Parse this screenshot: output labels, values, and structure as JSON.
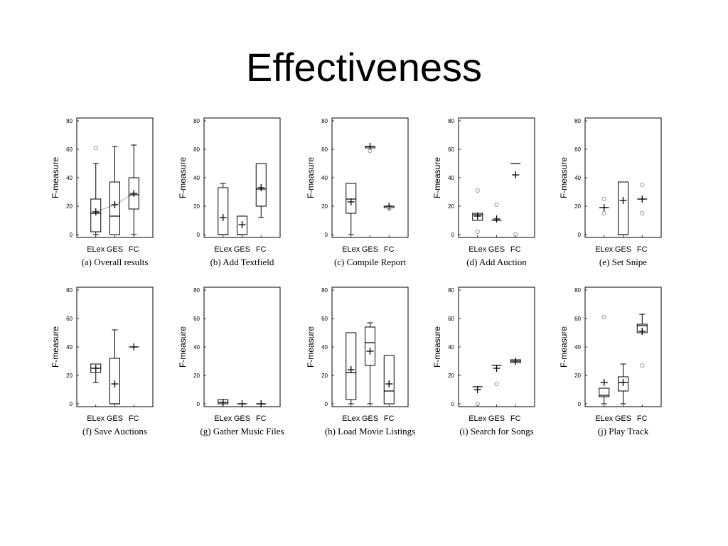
{
  "slide": {
    "title": "Effectiveness"
  },
  "chart_data": [
    {
      "type": "box",
      "caption": "(a) Overall results",
      "ylabel": "F-measure",
      "ylim": [
        0,
        80
      ],
      "yticks": [
        0,
        20,
        40,
        60,
        80
      ],
      "categories": [
        "ELex",
        "GES",
        "FC"
      ],
      "boxes": [
        {
          "whisker_low": 0,
          "q1": 2,
          "median": 15,
          "q3": 25,
          "whisker_high": 50,
          "mean": 16,
          "outliers": [
            61
          ]
        },
        {
          "whisker_low": 0,
          "q1": 0,
          "median": 13,
          "q3": 37,
          "whisker_high": 62,
          "mean": 21,
          "outliers": []
        },
        {
          "whisker_low": 0,
          "q1": 18,
          "median": 28,
          "q3": 40,
          "whisker_high": 63,
          "mean": 29,
          "outliers": []
        }
      ],
      "trend_line": true
    },
    {
      "type": "box",
      "caption": "(b) Add Textfield",
      "ylabel": "F-measure",
      "ylim": [
        0,
        80
      ],
      "yticks": [
        0,
        20,
        40,
        60,
        80
      ],
      "categories": [
        "ELex",
        "GES",
        "FC"
      ],
      "boxes": [
        {
          "whisker_low": 0,
          "q1": 0,
          "median": 0,
          "q3": 33,
          "whisker_high": 36,
          "mean": 12,
          "outliers": []
        },
        {
          "whisker_low": 0,
          "q1": 0,
          "median": 0,
          "q3": 13,
          "whisker_high": 13,
          "mean": 7,
          "outliers": []
        },
        {
          "whisker_low": 12,
          "q1": 20,
          "median": 32,
          "q3": 50,
          "whisker_high": 50,
          "mean": 33,
          "outliers": []
        }
      ]
    },
    {
      "type": "box",
      "caption": "(c) Compile Report",
      "ylabel": "F-measure",
      "ylim": [
        0,
        80
      ],
      "yticks": [
        0,
        20,
        40,
        60,
        80
      ],
      "categories": [
        "ELex",
        "GES",
        "FC"
      ],
      "boxes": [
        {
          "whisker_low": 0,
          "q1": 15,
          "median": 25,
          "q3": 36,
          "whisker_high": 36,
          "mean": 23,
          "outliers": []
        },
        {
          "whisker_low": 61,
          "q1": 61,
          "median": 62,
          "q3": 62,
          "whisker_high": 62,
          "mean": 62,
          "outliers": [
            59
          ]
        },
        {
          "whisker_low": 19,
          "q1": 19,
          "median": 20,
          "q3": 20,
          "whisker_high": 20,
          "mean": 20,
          "outliers": [
            18
          ]
        }
      ]
    },
    {
      "type": "box",
      "caption": "(d) Add Auction",
      "ylabel": "F-measure",
      "ylim": [
        0,
        80
      ],
      "yticks": [
        0,
        20,
        40,
        60,
        80
      ],
      "categories": [
        "ELex",
        "GES",
        "FC"
      ],
      "boxes": [
        {
          "whisker_low": 10,
          "q1": 10,
          "median": 14,
          "q3": 15,
          "whisker_high": 15,
          "mean": 13,
          "outliers": [
            31,
            2
          ]
        },
        {
          "whisker_low": 10,
          "q1": 10,
          "median": 10,
          "q3": 10,
          "whisker_high": 10,
          "mean": 11,
          "outliers": [
            21
          ]
        },
        {
          "whisker_low": 50,
          "q1": 50,
          "median": 50,
          "q3": 50,
          "whisker_high": 50,
          "mean": 42,
          "outliers": [
            0
          ]
        }
      ]
    },
    {
      "type": "box",
      "caption": "(e) Set Snipe",
      "ylabel": "F-measure",
      "ylim": [
        0,
        80
      ],
      "yticks": [
        0,
        20,
        40,
        60,
        80
      ],
      "categories": [
        "ELex",
        "GES",
        "FC"
      ],
      "boxes": [
        {
          "whisker_low": 19,
          "q1": 19,
          "median": 19,
          "q3": 19,
          "whisker_high": 19,
          "mean": 19,
          "outliers": [
            25,
            15
          ]
        },
        {
          "whisker_low": 0,
          "q1": 0,
          "median": 0,
          "q3": 37,
          "whisker_high": 37,
          "mean": 24,
          "outliers": []
        },
        {
          "whisker_low": 25,
          "q1": 25,
          "median": 25,
          "q3": 25,
          "whisker_high": 25,
          "mean": 25,
          "outliers": [
            35,
            15
          ]
        }
      ]
    },
    {
      "type": "box",
      "caption": "(f) Save Auctions",
      "ylabel": "F-measure",
      "ylim": [
        0,
        80
      ],
      "yticks": [
        0,
        20,
        40,
        60,
        80
      ],
      "categories": [
        "ELex",
        "GES",
        "FC"
      ],
      "boxes": [
        {
          "whisker_low": 15,
          "q1": 22,
          "median": 25,
          "q3": 28,
          "whisker_high": 28,
          "mean": 25,
          "outliers": []
        },
        {
          "whisker_low": 0,
          "q1": 0,
          "median": 0,
          "q3": 32,
          "whisker_high": 52,
          "mean": 14,
          "outliers": []
        },
        {
          "whisker_low": 40,
          "q1": 40,
          "median": 40,
          "q3": 40,
          "whisker_high": 40,
          "mean": 40,
          "outliers": []
        }
      ]
    },
    {
      "type": "box",
      "caption": "(g) Gather Music Files",
      "ylabel": "F-measure",
      "ylim": [
        0,
        80
      ],
      "yticks": [
        0,
        20,
        40,
        60,
        80
      ],
      "categories": [
        "ELex",
        "GES",
        "FC"
      ],
      "boxes": [
        {
          "whisker_low": 0,
          "q1": 0,
          "median": 1,
          "q3": 3,
          "whisker_high": 3,
          "mean": 1,
          "outliers": []
        },
        {
          "whisker_low": 0,
          "q1": 0,
          "median": 0,
          "q3": 0,
          "whisker_high": 0,
          "mean": 0,
          "outliers": []
        },
        {
          "whisker_low": 0,
          "q1": 0,
          "median": 0,
          "q3": 0,
          "whisker_high": 0,
          "mean": 0,
          "outliers": []
        }
      ]
    },
    {
      "type": "box",
      "caption": "(h) Load Movie Listings",
      "ylabel": "F-measure",
      "ylim": [
        0,
        80
      ],
      "yticks": [
        0,
        20,
        40,
        60,
        80
      ],
      "categories": [
        "ELex",
        "GES",
        "FC"
      ],
      "boxes": [
        {
          "whisker_low": 0,
          "q1": 3,
          "median": 22,
          "q3": 50,
          "whisker_high": 50,
          "mean": 24,
          "outliers": []
        },
        {
          "whisker_low": 0,
          "q1": 27,
          "median": 43,
          "q3": 54,
          "whisker_high": 57,
          "mean": 37,
          "outliers": []
        },
        {
          "whisker_low": 0,
          "q1": 0,
          "median": 9,
          "q3": 34,
          "whisker_high": 34,
          "mean": 14,
          "outliers": []
        }
      ]
    },
    {
      "type": "box",
      "caption": "(i) Search for Songs",
      "ylabel": "F-measure",
      "ylim": [
        0,
        80
      ],
      "yticks": [
        0,
        20,
        40,
        60,
        80
      ],
      "categories": [
        "ELex",
        "GES",
        "FC"
      ],
      "boxes": [
        {
          "whisker_low": 12,
          "q1": 12,
          "median": 12,
          "q3": 12,
          "whisker_high": 12,
          "mean": 10,
          "outliers": [
            0
          ]
        },
        {
          "whisker_low": 27,
          "q1": 27,
          "median": 27,
          "q3": 27,
          "whisker_high": 27,
          "mean": 25,
          "outliers": [
            14
          ]
        },
        {
          "whisker_low": 29,
          "q1": 29,
          "median": 30,
          "q3": 31,
          "whisker_high": 31,
          "mean": 30,
          "outliers": []
        }
      ]
    },
    {
      "type": "box",
      "caption": "(j) Play Track",
      "ylabel": "F-measure",
      "ylim": [
        0,
        80
      ],
      "yticks": [
        0,
        20,
        40,
        60,
        80
      ],
      "categories": [
        "ELex",
        "GES",
        "FC"
      ],
      "boxes": [
        {
          "whisker_low": 0,
          "q1": 5,
          "median": 6,
          "q3": 11,
          "whisker_high": 11,
          "mean": 15,
          "outliers": [
            61
          ]
        },
        {
          "whisker_low": 0,
          "q1": 9,
          "median": 15,
          "q3": 19,
          "whisker_high": 28,
          "mean": 15,
          "outliers": []
        },
        {
          "whisker_low": 50,
          "q1": 50,
          "median": 55,
          "q3": 56,
          "whisker_high": 63,
          "mean": 51,
          "outliers": [
            27
          ]
        }
      ]
    }
  ]
}
